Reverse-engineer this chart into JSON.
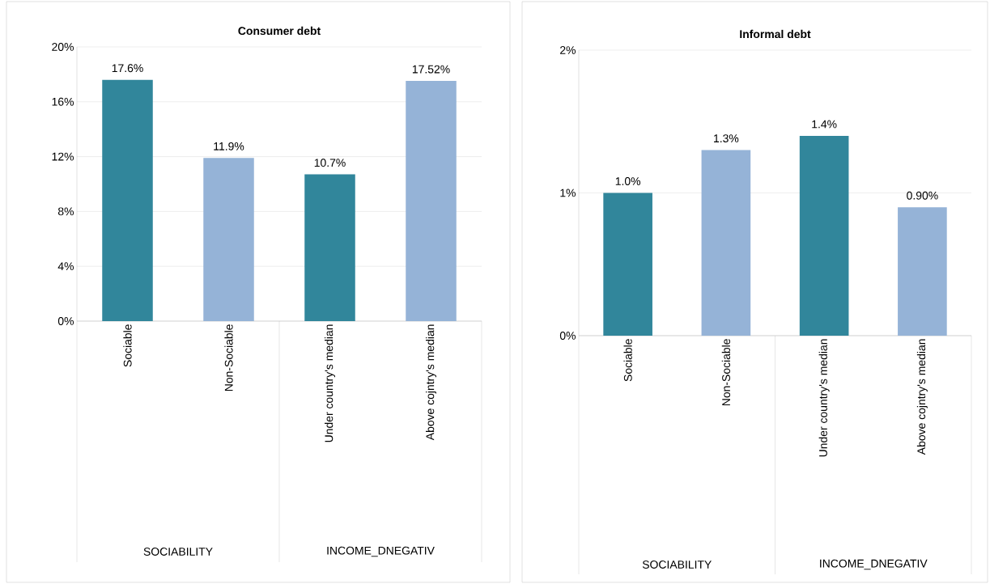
{
  "chart_data": [
    {
      "type": "bar",
      "title": "Consumer debt",
      "categories": [
        "Sociable",
        "Non-Sociable",
        "Under country's median",
        "Above cojntry's median"
      ],
      "values": [
        17.6,
        11.9,
        10.7,
        17.52
      ],
      "colors": [
        "#31869b",
        "#95b3d7",
        "#31869b",
        "#95b3d7"
      ],
      "value_labels": [
        "17.6%",
        "11.9%",
        "10.7%",
        "17.52%"
      ],
      "ylim": [
        0,
        20
      ],
      "yticks": [
        {
          "value": 0,
          "label": "0%"
        },
        {
          "value": 4,
          "label": "4%"
        },
        {
          "value": 8,
          "label": "8%"
        },
        {
          "value": 12,
          "label": "12%"
        },
        {
          "value": 16,
          "label": "16%"
        },
        {
          "value": 20,
          "label": "20%"
        }
      ],
      "grid": "y",
      "annotations": [
        "SOCIABILITY",
        "INCOME_DNEGATIV"
      ]
    },
    {
      "type": "bar",
      "title": "Informal debt",
      "categories": [
        "Sociable",
        "Non-Sociable",
        "Under country's median",
        "Above cojntry's median"
      ],
      "values": [
        1.0,
        1.3,
        1.4,
        0.9
      ],
      "colors": [
        "#31869b",
        "#95b3d7",
        "#31869b",
        "#95b3d7"
      ],
      "value_labels": [
        "1.0%",
        "1.3%",
        "1.4%",
        "0.90%"
      ],
      "ylim": [
        0,
        2
      ],
      "yticks": [
        {
          "value": 0,
          "label": "0%"
        },
        {
          "value": 1,
          "label": "1%"
        },
        {
          "value": 2,
          "label": "2%"
        }
      ],
      "grid": "y",
      "annotations": [
        "SOCIABILITY",
        "INCOME_DNEGATIV"
      ]
    }
  ]
}
